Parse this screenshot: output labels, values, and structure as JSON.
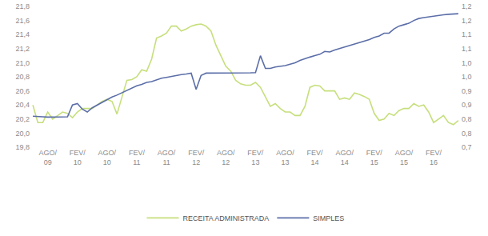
{
  "chart_data": {
    "type": "line",
    "categories": [
      null,
      null,
      null,
      "AGO/ 09",
      null,
      null,
      null,
      null,
      null,
      "FEV/ 10",
      null,
      null,
      null,
      null,
      null,
      "AGO/ 10",
      null,
      null,
      null,
      null,
      null,
      "FEV/ 11",
      null,
      null,
      null,
      null,
      null,
      "AGO/ 11",
      null,
      null,
      null,
      null,
      null,
      "FEV/ 12",
      null,
      null,
      null,
      null,
      null,
      "AGO/ 12",
      null,
      null,
      null,
      null,
      null,
      "FEV/ 13",
      null,
      null,
      null,
      null,
      null,
      "AGO/ 13",
      null,
      null,
      null,
      null,
      null,
      "FEV/ 14",
      null,
      null,
      null,
      null,
      null,
      "AGO/ 14",
      null,
      null,
      null,
      null,
      null,
      "FEV/ 15",
      null,
      null,
      null,
      null,
      null,
      "AGO/ 15",
      null,
      null,
      null,
      null,
      null,
      "FEV/ 16",
      null,
      null,
      null,
      null,
      null
    ],
    "series": [
      {
        "name": "RECEITA ADMINISTRADA",
        "color": "#c6df7c",
        "values": [
          20.4,
          20.15,
          20.15,
          20.3,
          20.2,
          20.25,
          20.3,
          20.28,
          20.22,
          20.3,
          20.35,
          20.35,
          20.35,
          20.4,
          20.45,
          20.48,
          20.45,
          20.27,
          20.5,
          20.75,
          20.76,
          20.8,
          20.9,
          20.88,
          21.05,
          21.35,
          21.38,
          21.42,
          21.52,
          21.52,
          21.45,
          21.48,
          21.52,
          21.54,
          21.55,
          21.52,
          21.45,
          21.25,
          21.1,
          20.95,
          20.88,
          20.75,
          20.7,
          20.68,
          20.68,
          20.72,
          20.65,
          20.52,
          20.38,
          20.42,
          20.35,
          20.3,
          20.3,
          20.25,
          20.25,
          20.38,
          20.65,
          20.68,
          20.67,
          20.6,
          20.6,
          20.6,
          20.48,
          20.5,
          20.48,
          20.57,
          20.55,
          20.52,
          20.48,
          20.28,
          20.18,
          20.2,
          20.28,
          20.25,
          20.32,
          20.35,
          20.35,
          20.42,
          20.38,
          20.4,
          20.3,
          20.15,
          20.2,
          20.25,
          20.15,
          20.12,
          20.18
        ]
      },
      {
        "name": "SIMPLES",
        "color": "#5b6ea8",
        "axis": "y2",
        "values": [
          0.81,
          0.808,
          0.808,
          0.807,
          0.807,
          0.806,
          0.807,
          0.808,
          0.85,
          0.855,
          0.835,
          0.825,
          0.84,
          0.85,
          0.86,
          0.87,
          0.878,
          0.885,
          0.893,
          0.9,
          0.91,
          0.918,
          0.923,
          0.93,
          0.933,
          0.94,
          0.945,
          0.948,
          0.952,
          0.955,
          0.958,
          0.96,
          0.963,
          0.905,
          0.955,
          0.963,
          0.963,
          0.962,
          0.962,
          0.962,
          0.962,
          0.962,
          0.963,
          0.963,
          0.964,
          0.965,
          1.025,
          0.98,
          0.98,
          0.985,
          0.987,
          0.99,
          0.995,
          1.0,
          1.008,
          1.015,
          1.02,
          1.025,
          1.03,
          1.04,
          1.038,
          1.045,
          1.05,
          1.055,
          1.06,
          1.065,
          1.07,
          1.075,
          1.082,
          1.09,
          1.095,
          1.105,
          1.105,
          1.12,
          1.13,
          1.135,
          1.14,
          1.15,
          1.157,
          1.16,
          1.163,
          1.166,
          1.168,
          1.17,
          1.172,
          1.173,
          1.174
        ]
      }
    ],
    "ylim": [
      19.8,
      21.8
    ],
    "yticks": [
      {
        "value": 19.8,
        "label": "19,8"
      },
      {
        "value": 20.0,
        "label": "20,0"
      },
      {
        "value": 20.2,
        "label": "20,2"
      },
      {
        "value": 20.4,
        "label": "20,4"
      },
      {
        "value": 20.6,
        "label": "20,6"
      },
      {
        "value": 20.8,
        "label": "20,8"
      },
      {
        "value": 21.0,
        "label": "21,0"
      },
      {
        "value": 21.2,
        "label": "21,2"
      },
      {
        "value": 21.4,
        "label": "21,4"
      },
      {
        "value": 21.6,
        "label": "21,6"
      },
      {
        "value": 21.8,
        "label": "21,8"
      }
    ],
    "y2lim": [
      0.7,
      1.2
    ],
    "y2ticks": [
      {
        "value": 0.7,
        "label": "0,7"
      },
      {
        "value": 0.75,
        "label": "0,8"
      },
      {
        "value": 0.8,
        "label": "0,8"
      },
      {
        "value": 0.85,
        "label": "0,9"
      },
      {
        "value": 0.9,
        "label": "0,9"
      },
      {
        "value": 0.95,
        "label": "1,0"
      },
      {
        "value": 1.0,
        "label": "1,0"
      },
      {
        "value": 1.05,
        "label": "1,1"
      },
      {
        "value": 1.1,
        "label": "1,1"
      },
      {
        "value": 1.15,
        "label": "1,2"
      },
      {
        "value": 1.2,
        "label": "1,2"
      }
    ],
    "grid": false,
    "legend": "bottom"
  }
}
